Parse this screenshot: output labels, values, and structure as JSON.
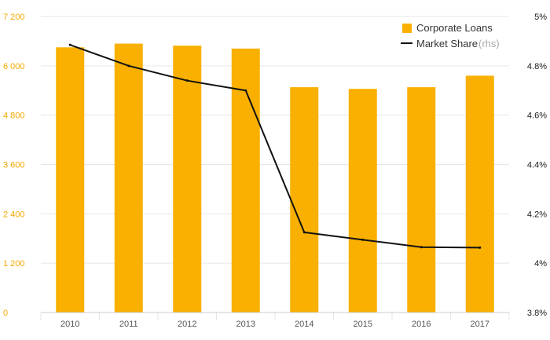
{
  "colors": {
    "bar": "#f9b000",
    "line": "#111111",
    "grid": "#e6e6e6",
    "left_axis_text": "#f2a900",
    "right_axis_text": "#1a1a1a",
    "x_axis_text": "#555555"
  },
  "chart_data": {
    "type": "bar",
    "categories": [
      "2010",
      "2011",
      "2012",
      "2013",
      "2014",
      "2015",
      "2016",
      "2017"
    ],
    "series": [
      {
        "name": "Corporate Loans",
        "type": "bar",
        "axis": "left",
        "values": [
          6450,
          6540,
          6490,
          6420,
          5480,
          5440,
          5480,
          5760
        ]
      },
      {
        "name": "Market Share",
        "type": "line",
        "axis": "right",
        "values": [
          4.885,
          4.8,
          4.74,
          4.7,
          4.125,
          4.095,
          4.065,
          4.063
        ]
      }
    ],
    "y_left": {
      "ylim": [
        0,
        7200
      ],
      "ticks": [
        "0",
        "1 200",
        "2 400",
        "3 600",
        "4 800",
        "6 000",
        "7 200"
      ]
    },
    "y_right": {
      "ylim": [
        3.8,
        5.0
      ],
      "ticks": [
        "3.8%",
        "4%",
        "4.2%",
        "4.4%",
        "4.6%",
        "4.8%",
        "5%"
      ]
    },
    "legend": {
      "placement": "top-right",
      "items": [
        {
          "label": "Corporate Loans",
          "suffix": ""
        },
        {
          "label": "Market Share",
          "suffix": "(rhs)"
        }
      ]
    },
    "grid": true
  }
}
